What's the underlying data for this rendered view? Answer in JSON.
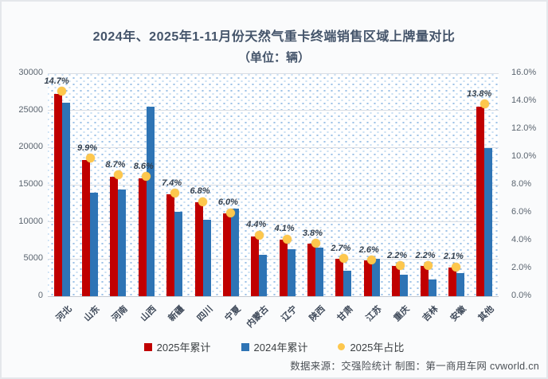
{
  "title": {
    "line1": "2024年、2025年1-11月份天然气重卡终端销售区域上牌量对比",
    "line2": "（单位：辆）"
  },
  "chart_data": {
    "type": "bar",
    "categories": [
      "河北",
      "山东",
      "河南",
      "山西",
      "新疆",
      "四川",
      "宁夏",
      "内蒙古",
      "辽宁",
      "陕西",
      "甘肃",
      "江苏",
      "重庆",
      "吉林",
      "安徽",
      "其他"
    ],
    "series": [
      {
        "name": "2025年累计",
        "type": "bar",
        "axis": "left",
        "color": "#c00000",
        "values": [
          27200,
          18350,
          16100,
          15900,
          13700,
          12600,
          11100,
          8050,
          7650,
          7050,
          5000,
          4800,
          4100,
          4050,
          3900,
          25500
        ]
      },
      {
        "name": "2024年累计",
        "type": "bar",
        "axis": "left",
        "color": "#2e74b5",
        "values": [
          26000,
          13900,
          14400,
          25550,
          11400,
          10250,
          11800,
          5550,
          6300,
          6500,
          3400,
          5000,
          2850,
          2250,
          3100,
          19900
        ]
      },
      {
        "name": "2025年占比",
        "type": "point",
        "axis": "right",
        "color": "#fdc74d",
        "values": [
          14.7,
          9.9,
          8.7,
          8.6,
          7.4,
          6.8,
          6.0,
          4.4,
          4.1,
          3.8,
          2.7,
          2.6,
          2.2,
          2.2,
          2.1,
          13.8
        ],
        "labels": [
          "14.7%",
          "9.9%",
          "8.7%",
          "8.6%",
          "7.4%",
          "6.8%",
          "6.0%",
          "4.4%",
          "4.1%",
          "3.8%",
          "2.7%",
          "2.6%",
          "2.2%",
          "2.2%",
          "2.1%",
          "13.8%"
        ]
      }
    ],
    "left_axis": {
      "min": 0,
      "max": 30000,
      "ticks": [
        "0",
        "5000",
        "10000",
        "15000",
        "20000",
        "25000",
        "30000"
      ]
    },
    "right_axis": {
      "min": 0,
      "max": 16,
      "ticks": [
        "0.0%",
        "2.0%",
        "4.0%",
        "6.0%",
        "8.0%",
        "10.0%",
        "12.0%",
        "14.0%",
        "16.0%"
      ]
    },
    "grid": true,
    "legend_position": "bottom"
  },
  "legend": [
    {
      "label": "2025年累计",
      "color": "#c00000",
      "marker": "square"
    },
    {
      "label": "2024年累计",
      "color": "#2e74b5",
      "marker": "circle-none-square"
    },
    {
      "label": "2025年占比",
      "color": "#fdc74d",
      "marker": "circle"
    }
  ],
  "footer": "数据来源：交强险统计 制图：第一商用车网 cvworld.cn",
  "colors": {
    "bar_2025": "#c00000",
    "bar_2024": "#2e74b5",
    "dot_2025_share": "#fdc74d",
    "title_text": "#44546a",
    "gridline": "#d9dde3"
  }
}
